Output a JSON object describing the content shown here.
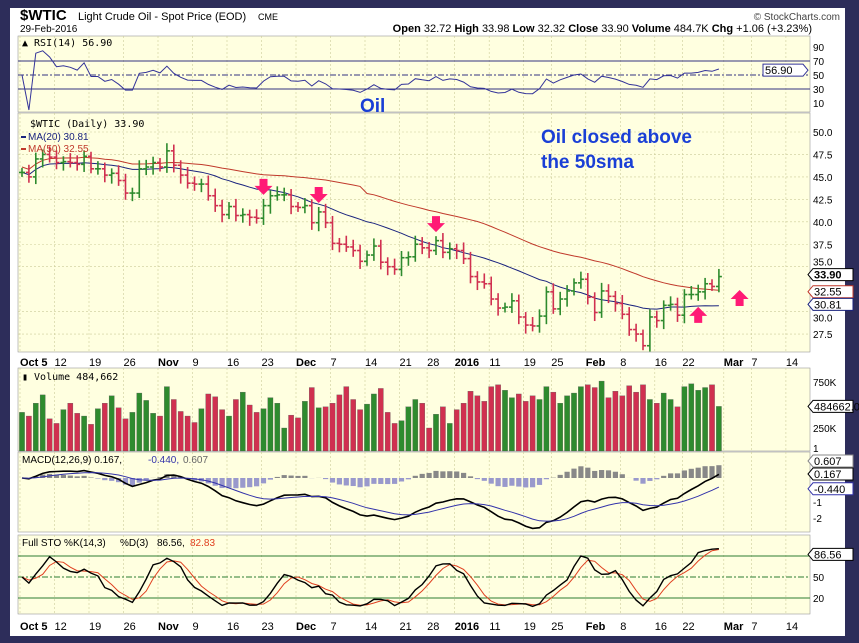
{
  "header": {
    "symbol": "$WTIC",
    "name": "Light Crude Oil - Spot Price (EOD)",
    "exchange": "CME",
    "date": "29-Feb-2016",
    "brand": "© StockCharts.com",
    "quote": {
      "open_label": "Open",
      "open": "32.72",
      "high_label": "High",
      "high": "33.98",
      "low_label": "Low",
      "low": "32.32",
      "close_label": "Close",
      "close": "33.90",
      "volume_label": "Volume",
      "volume": "484.7K",
      "chg_label": "Chg",
      "chg": "+1.06 (+3.23%)"
    }
  },
  "colors": {
    "up": "#2e8b2e",
    "down": "#d03050",
    "ma20": "#1a237e",
    "ma50": "#c0392b",
    "arrow": "#ff1a75",
    "annotation": "#1a3fd6",
    "bg": "#ffffe0",
    "frame": "#2d2d5a"
  },
  "chart_data": {
    "type": "ohlc",
    "title": "$WTIC (Daily) 33.90",
    "closes": [
      45.5,
      45.0,
      47.0,
      47.5,
      47.2,
      46.6,
      46.7,
      46.6,
      46.4,
      47.3,
      45.9,
      45.9,
      45.2,
      45.4,
      44.6,
      43.2,
      43.2,
      45.9,
      46.1,
      46.6,
      46.1,
      47.9,
      46.3,
      45.2,
      44.3,
      44.2,
      44.2,
      42.9,
      41.8,
      40.8,
      41.7,
      40.7,
      40.8,
      40.5,
      40.4,
      41.8,
      42.9,
      43.0,
      43.0,
      41.7,
      41.6,
      41.8,
      39.9,
      41.1,
      39.9,
      37.6,
      37.5,
      37.2,
      36.8,
      35.6,
      36.3,
      37.3,
      35.5,
      35.0,
      34.7,
      36.0,
      36.1,
      37.5,
      37.1,
      36.8,
      37.9,
      36.6,
      37.0,
      36.8,
      35.9,
      33.9,
      33.3,
      33.1,
      31.4,
      30.4,
      30.5,
      31.2,
      29.4,
      28.5,
      28.4,
      29.5,
      32.2,
      30.3,
      31.4,
      32.3,
      33.2,
      33.6,
      31.6,
      29.9,
      32.3,
      31.7,
      30.9,
      29.7,
      28.0,
      27.5,
      26.2,
      29.4,
      29.0,
      30.7,
      30.8,
      29.6,
      31.9,
      31.9,
      32.2,
      33.1,
      32.8,
      33.9
    ],
    "volumes": [
      420000,
      380000,
      520000,
      610000,
      350000,
      300000,
      450000,
      520000,
      410000,
      380000,
      290000,
      460000,
      520000,
      600000,
      470000,
      350000,
      420000,
      630000,
      550000,
      410000,
      380000,
      700000,
      560000,
      430000,
      380000,
      310000,
      460000,
      620000,
      590000,
      450000,
      380000,
      560000,
      640000,
      500000,
      420000,
      460000,
      580000,
      520000,
      250000,
      390000,
      360000,
      540000,
      690000,
      470000,
      480000,
      520000,
      610000,
      700000,
      560000,
      450000,
      510000,
      620000,
      680000,
      420000,
      300000,
      330000,
      480000,
      560000,
      520000,
      250000,
      400000,
      480000,
      300000,
      450000,
      520000,
      650000,
      600000,
      540000,
      700000,
      720000,
      660000,
      580000,
      620000,
      540000,
      600000,
      560000,
      700000,
      640000,
      520000,
      600000,
      630000,
      700000,
      720000,
      690000,
      760000,
      580000,
      650000,
      600000,
      710000,
      640000,
      720000,
      560000,
      520000,
      630000,
      560000,
      480000,
      700000,
      730000,
      660000,
      690000,
      720000,
      484662
    ],
    "price_axis": {
      "ticks": [
        "50.0",
        "47.5",
        "45.0",
        "42.5",
        "40.0",
        "37.5",
        "35.0",
        "30.0",
        "27.5"
      ],
      "range": [
        25.5,
        51.5
      ]
    },
    "x_ticks": [
      {
        "i": 0,
        "label": "Oct 5"
      },
      {
        "i": 5,
        "label": "12"
      },
      {
        "i": 10,
        "label": "19"
      },
      {
        "i": 15,
        "label": "26"
      },
      {
        "i": 20,
        "label": "Nov"
      },
      {
        "i": 25,
        "label": "9"
      },
      {
        "i": 30,
        "label": "16"
      },
      {
        "i": 35,
        "label": "23"
      },
      {
        "i": 40,
        "label": "Dec"
      },
      {
        "i": 45,
        "label": "7"
      },
      {
        "i": 50,
        "label": "14"
      },
      {
        "i": 55,
        "label": "21"
      },
      {
        "i": 59,
        "label": "28"
      },
      {
        "i": 63,
        "label": "2016"
      },
      {
        "i": 68,
        "label": "11"
      },
      {
        "i": 73,
        "label": "19"
      },
      {
        "i": 77,
        "label": "25"
      },
      {
        "i": 82,
        "label": "Feb"
      },
      {
        "i": 87,
        "label": "8"
      },
      {
        "i": 92,
        "label": "16"
      },
      {
        "i": 96,
        "label": "22"
      },
      {
        "i": 102,
        "label": "Mar"
      },
      {
        "i": 106,
        "label": "7"
      },
      {
        "i": 111,
        "label": "14"
      }
    ],
    "bold_ticks": [
      "Oct 5",
      "Nov",
      "Dec",
      "2016",
      "Feb",
      "Mar"
    ],
    "legend": {
      "price": "$WTIC (Daily) 33.90",
      "ma20": "MA(20) 30.81",
      "ma50": "MA(50) 32.55"
    },
    "tags": {
      "close": "33.90",
      "ma50": "32.55",
      "ma20": "30.81",
      "volume": "484662.0",
      "macd_hist": "0.607",
      "macd": "0.167",
      "macd_signal": "-0.440",
      "sto": "86.56",
      "rsi": "56.90"
    },
    "panels": {
      "rsi": {
        "title": "RSI(14) 56.90",
        "ticks": [
          "90",
          "70",
          "50",
          "30",
          "10"
        ]
      },
      "volume": {
        "title": "Volume 484,662",
        "ticks": [
          "750K",
          "250K"
        ]
      },
      "macd": {
        "title_main": "MACD(12,26,9) 0.167,",
        "title_signal": "-0.440,",
        "title_hist": "0.607",
        "ticks": [
          "1",
          "-1",
          "-2"
        ]
      },
      "sto": {
        "title_main": "Full STO %K(14,3)",
        "title_k": "86.56,",
        "title_d_label": "%D(3)",
        "title_d": "82.83",
        "ticks": [
          "50",
          "20"
        ]
      }
    },
    "annotations": {
      "oil": "Oil",
      "note_line1": "Oil closed above",
      "note_line2": "the 50sma",
      "down_arrows_at": [
        35,
        43,
        60
      ],
      "up_arrows_at": [
        98,
        104
      ]
    }
  }
}
